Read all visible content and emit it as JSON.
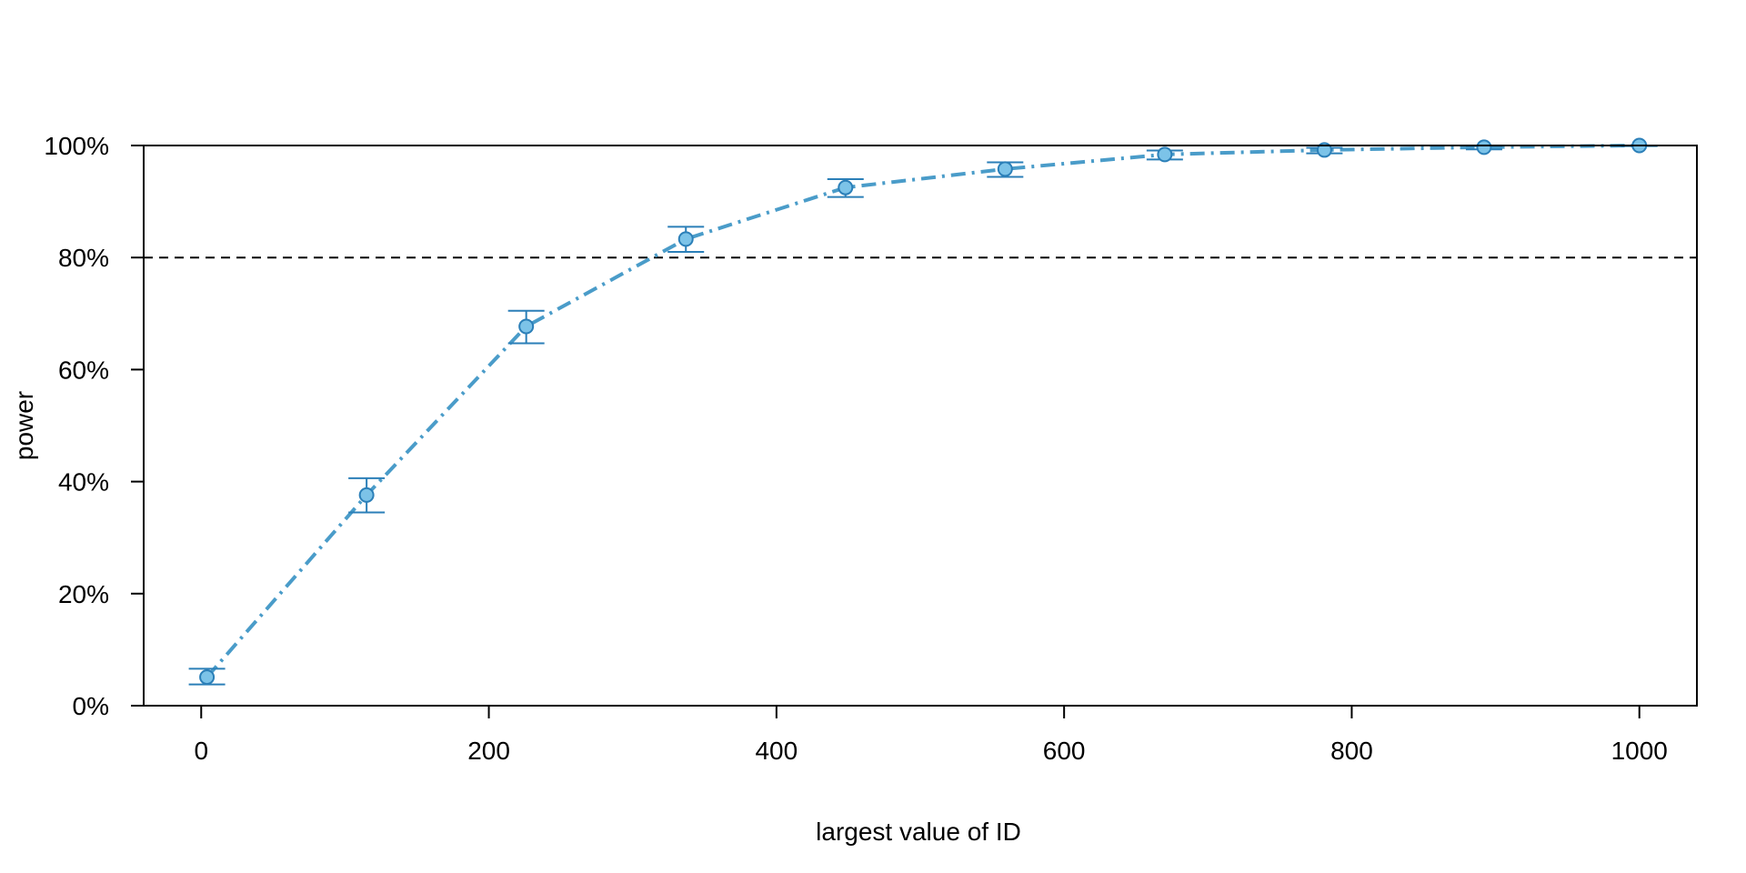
{
  "chart_data": {
    "type": "line",
    "title": "",
    "xlabel": "largest value of ID",
    "ylabel": "power",
    "xlim": [
      -40,
      1040
    ],
    "ylim": [
      0,
      1
    ],
    "x_ticks": [
      0,
      200,
      400,
      600,
      800,
      1000
    ],
    "x_tick_labels": [
      "0",
      "200",
      "400",
      "600",
      "800",
      "1000"
    ],
    "y_ticks": [
      0,
      0.2,
      0.4,
      0.6,
      0.8,
      1.0
    ],
    "y_tick_labels": [
      "0%",
      "20%",
      "40%",
      "60%",
      "80%",
      "100%"
    ],
    "reference_line": {
      "y": 0.8,
      "style": "dashed",
      "color": "#000000"
    },
    "grid": false,
    "series": [
      {
        "color": "#4a9cc9",
        "point_fill": "#7cc3e8",
        "point_stroke": "#2b7fb8",
        "line_style": "dot-dash",
        "x": [
          4,
          115,
          226,
          337,
          448,
          559,
          670,
          781,
          892,
          1000
        ],
        "y": [
          0.051,
          0.376,
          0.677,
          0.833,
          0.925,
          0.958,
          0.984,
          0.992,
          0.997,
          1.0
        ],
        "err_low": [
          0.038,
          0.345,
          0.647,
          0.81,
          0.908,
          0.944,
          0.975,
          0.986,
          0.993,
          0.999
        ],
        "err_high": [
          0.066,
          0.406,
          0.705,
          0.855,
          0.94,
          0.97,
          0.991,
          0.996,
          0.999,
          1.0
        ]
      }
    ]
  }
}
